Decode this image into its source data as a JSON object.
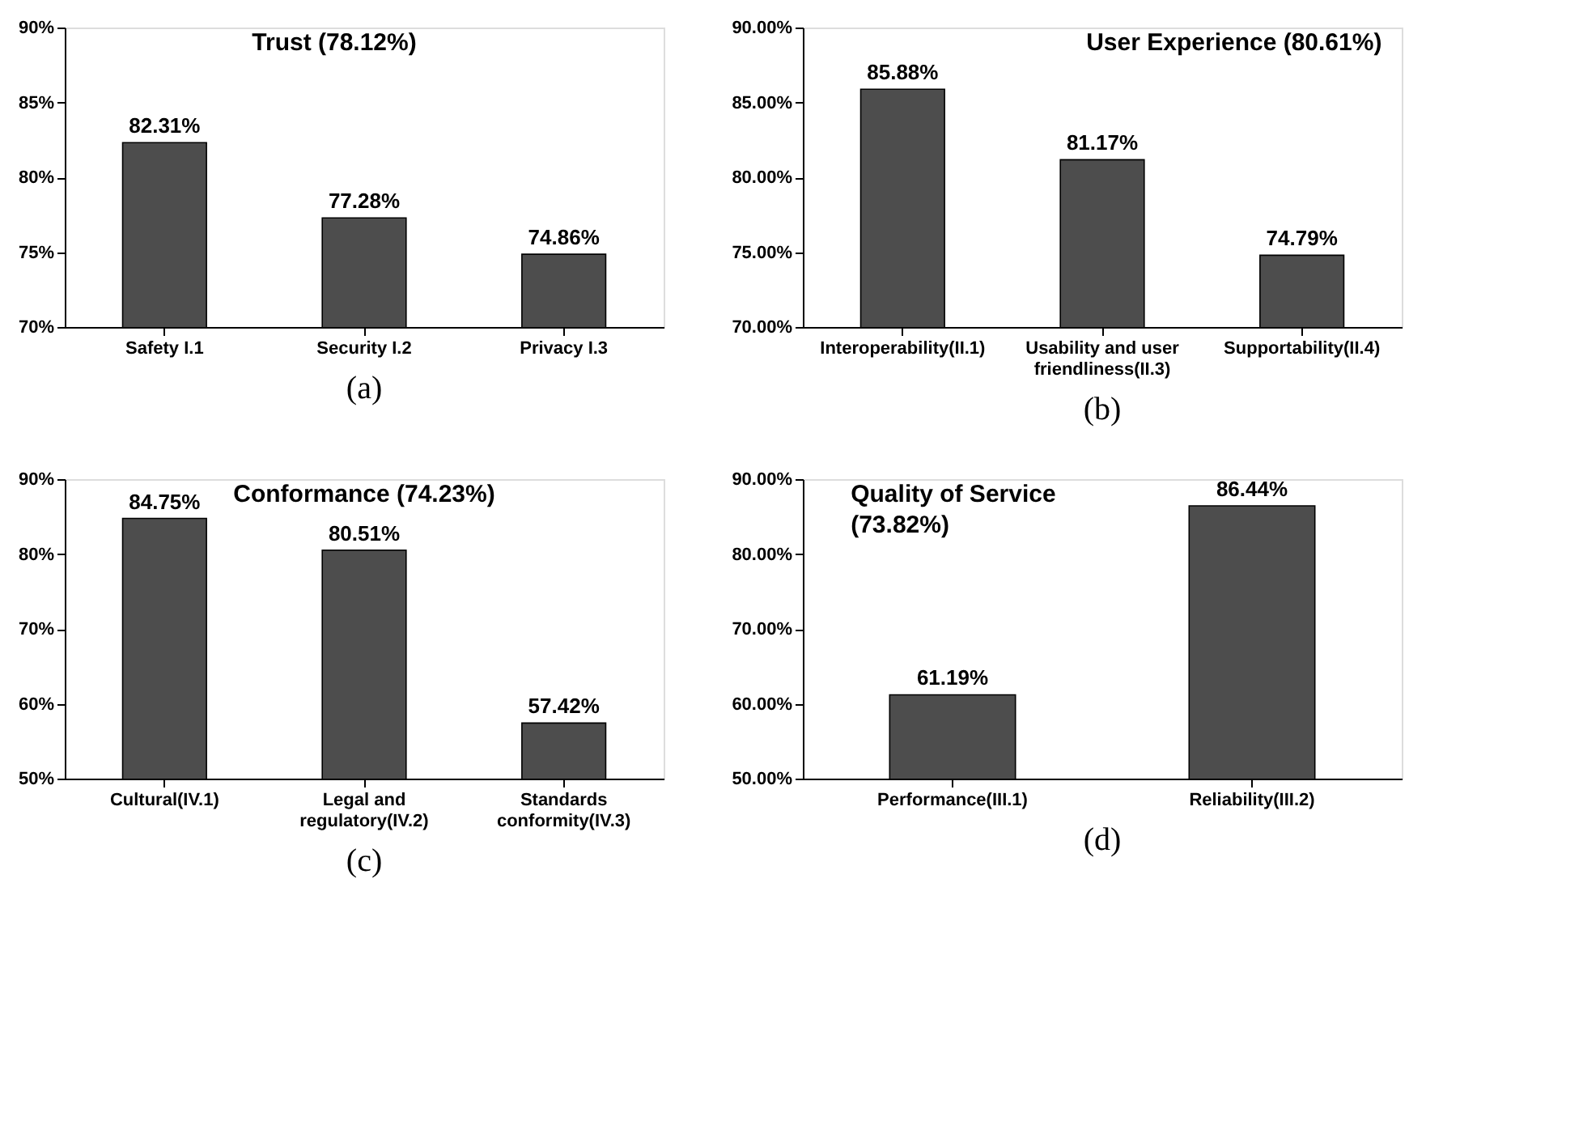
{
  "chart_data": [
    {
      "type": "bar",
      "title": "Trust (78.12%)",
      "categories": [
        "Safety I.1",
        "Security I.2",
        "Privacy I.3"
      ],
      "values": [
        82.31,
        77.28,
        74.86
      ],
      "value_labels": [
        "82.31%",
        "77.28%",
        "74.86%"
      ],
      "color": "#4d4d4d",
      "ylim": [
        70,
        90
      ],
      "yticks": [
        {
          "value": 70,
          "label": "70%"
        },
        {
          "value": 75,
          "label": "75%"
        },
        {
          "value": 80,
          "label": "80%"
        },
        {
          "value": 85,
          "label": "85%"
        },
        {
          "value": 90,
          "label": "90%"
        }
      ],
      "grid": false,
      "annotations": [
        "(a)"
      ]
    },
    {
      "type": "bar",
      "title": "User Experience (80.61%)",
      "categories": [
        "Interoperability(II.1)",
        "Usability and user friendliness(II.3)",
        "Supportability(II.4)"
      ],
      "values": [
        85.88,
        81.17,
        74.79
      ],
      "value_labels": [
        "85.88%",
        "81.17%",
        "74.79%"
      ],
      "color": "#4d4d4d",
      "ylim": [
        70,
        90
      ],
      "yticks": [
        {
          "value": 70,
          "label": "70.00%"
        },
        {
          "value": 75,
          "label": "75.00%"
        },
        {
          "value": 80,
          "label": "80.00%"
        },
        {
          "value": 85,
          "label": "85.00%"
        },
        {
          "value": 90,
          "label": "90.00%"
        }
      ],
      "grid": false,
      "annotations": [
        "(b)"
      ]
    },
    {
      "type": "bar",
      "title": "Conformance  (74.23%)",
      "categories": [
        "Cultural(IV.1)",
        "Legal and regulatory(IV.2)",
        "Standards conformity(IV.3)"
      ],
      "values": [
        84.75,
        80.51,
        57.42
      ],
      "value_labels": [
        "84.75%",
        "80.51%",
        "57.42%"
      ],
      "color": "#4d4d4d",
      "ylim": [
        50,
        90
      ],
      "yticks": [
        {
          "value": 50,
          "label": "50%"
        },
        {
          "value": 60,
          "label": "60%"
        },
        {
          "value": 70,
          "label": "70%"
        },
        {
          "value": 80,
          "label": "80%"
        },
        {
          "value": 90,
          "label": "90%"
        }
      ],
      "grid": false,
      "annotations": [
        "(c)"
      ]
    },
    {
      "type": "bar",
      "title": "Quality of Service (73.82%)",
      "categories": [
        "Performance(III.1)",
        "Reliability(III.2)"
      ],
      "values": [
        61.19,
        86.44
      ],
      "value_labels": [
        "61.19%",
        "86.44%"
      ],
      "color": "#4d4d4d",
      "ylim": [
        50,
        90
      ],
      "yticks": [
        {
          "value": 50,
          "label": "50.00%"
        },
        {
          "value": 60,
          "label": "60.00%"
        },
        {
          "value": 70,
          "label": "70.00%"
        },
        {
          "value": 80,
          "label": "80.00%"
        },
        {
          "value": 90,
          "label": "90.00%"
        }
      ],
      "grid": false,
      "annotations": [
        "(d)"
      ]
    }
  ]
}
